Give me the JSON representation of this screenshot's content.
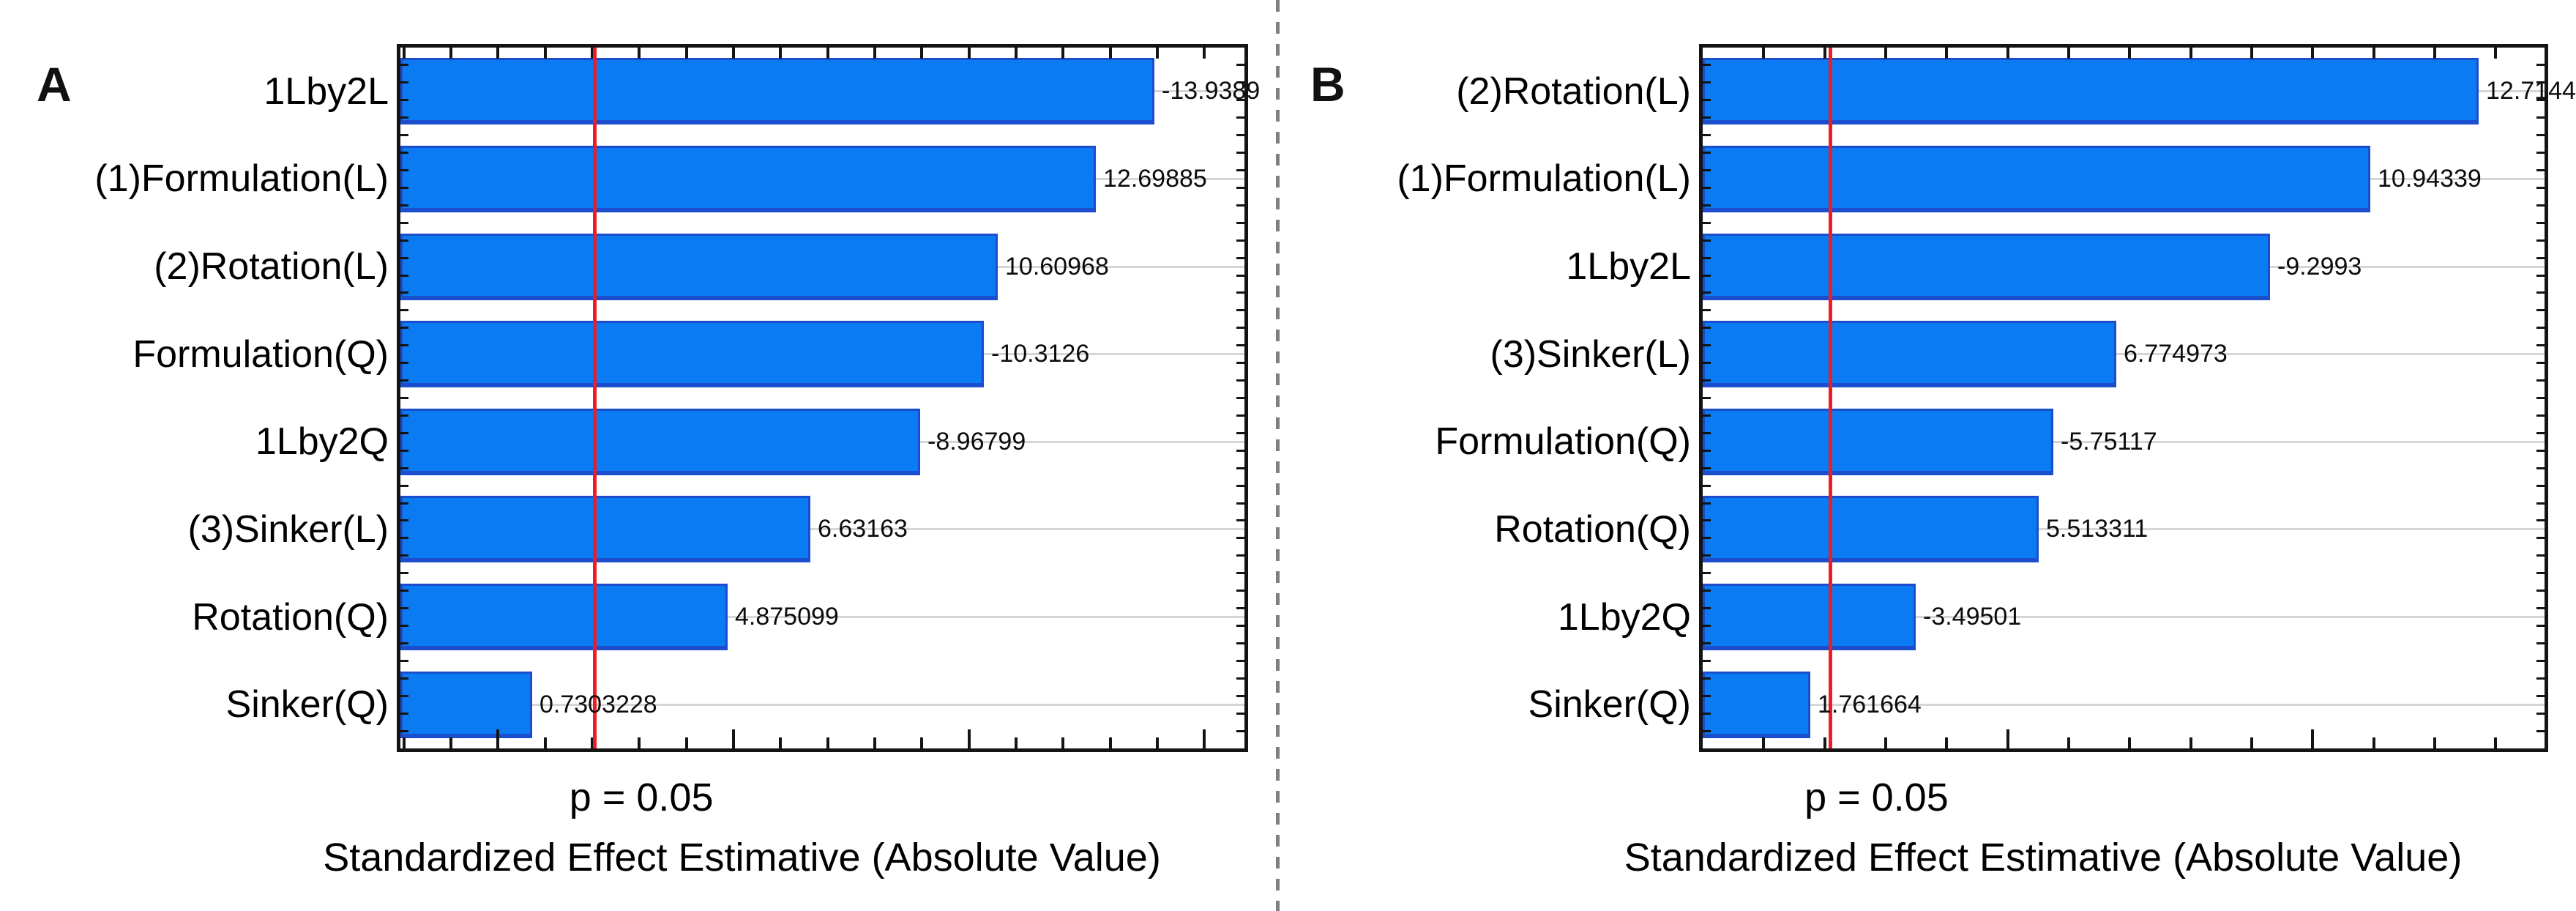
{
  "figure": {
    "x_axis_title": "Standardized Effect Estimative (Absolute Value)",
    "p_label": "p = 0.05",
    "panel_letters": [
      "A",
      "B"
    ],
    "colors": {
      "bar_fill": "#0a7bf2",
      "bar_border": "#1b4ecc",
      "significance_line_red": "#ee1c25",
      "gridline": "#d6d6d6",
      "axis_frame": "#141414",
      "divider_gray": "#7f7f7f",
      "text": "#000000"
    }
  },
  "chart_data": [
    {
      "type": "bar",
      "panel": "A",
      "orientation": "horizontal-pareto",
      "title": "",
      "xlabel": "Standardized Effect Estimative (Absolute Value)",
      "categories": [
        "1Lby2L",
        "(1)Formulation(L)",
        "(2)Rotation(L)",
        "Formulation(Q)",
        "1Lby2Q",
        "(3)Sinker(L)",
        "Rotation(Q)",
        "Sinker(Q)"
      ],
      "values": [
        -13.9389,
        12.69885,
        10.60968,
        -10.3126,
        -8.96799,
        6.63163,
        4.875099,
        0.7303228
      ],
      "value_labels": [
        "-13.9389",
        "12.69885",
        "10.60968",
        "-10.3126",
        "-8.96799",
        "6.63163",
        "4.875099",
        "0.7303228"
      ],
      "significance_line": {
        "label": "p = 0.05",
        "x": 2.06
      },
      "xlim": [
        -2.07,
        15.85
      ],
      "tick_step": 1,
      "major_tick_step": 5,
      "grid": "horizontal",
      "bar_color": "#0a7bf2",
      "legend": "none"
    },
    {
      "type": "bar",
      "panel": "B",
      "orientation": "horizontal-pareto",
      "title": "",
      "xlabel": "Standardized Effect Estimative (Absolute Value)",
      "categories": [
        "(2)Rotation(L)",
        "(1)Formulation(L)",
        "1Lby2L",
        "(3)Sinker(L)",
        "Formulation(Q)",
        "Rotation(Q)",
        "1Lby2Q",
        "Sinker(Q)"
      ],
      "values": [
        12.7144,
        10.94339,
        -9.2993,
        6.774973,
        -5.75117,
        5.513311,
        -3.49501,
        1.761664
      ],
      "value_labels": [
        "12.7144",
        "10.94339",
        "-9.2993",
        "6.774973",
        "-5.75117",
        "5.513311",
        "-3.49501",
        "1.761664"
      ],
      "significance_line": {
        "label": "p = 0.05",
        "x": 2.09
      },
      "xlim": [
        0,
        13.8
      ],
      "tick_step": 1,
      "major_tick_step": 5,
      "grid": "horizontal",
      "bar_color": "#0a7bf2",
      "legend": "none"
    }
  ]
}
